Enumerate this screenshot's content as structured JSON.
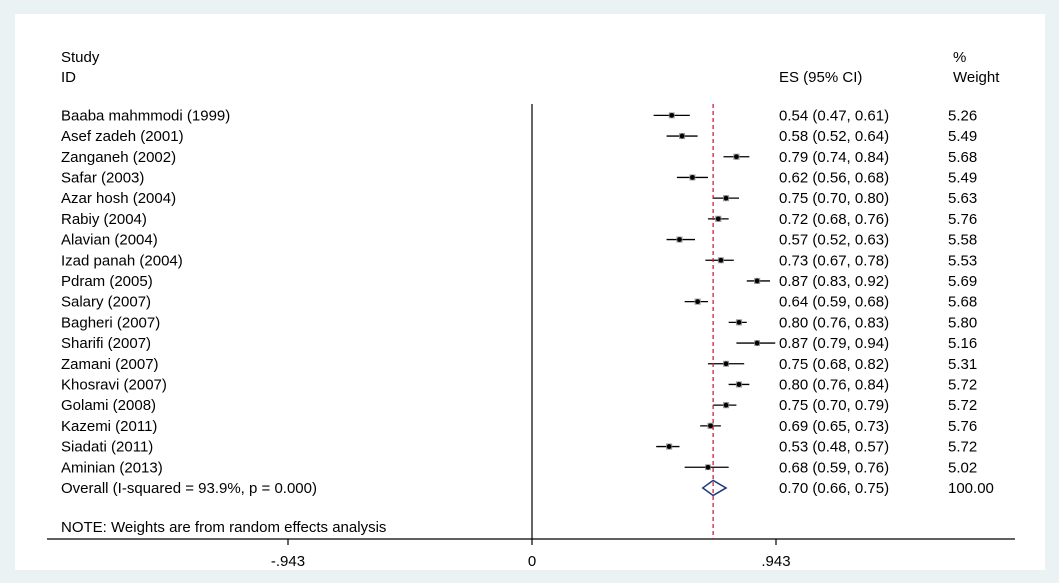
{
  "chart_data": {
    "type": "forest",
    "header": {
      "study_line1": "Study",
      "study_line2": "ID",
      "es_label": "ES (95% CI)",
      "weight_line1": "%",
      "weight_line2": "Weight"
    },
    "studies": [
      {
        "id": "Baaba mahmmodi (1999)",
        "es": 0.54,
        "lo": 0.47,
        "hi": 0.61,
        "ci_text": "0.54 (0.47, 0.61)",
        "weight": "5.26"
      },
      {
        "id": "Asef zadeh (2001)",
        "es": 0.58,
        "lo": 0.52,
        "hi": 0.64,
        "ci_text": "0.58 (0.52, 0.64)",
        "weight": "5.49"
      },
      {
        "id": "Zanganeh (2002)",
        "es": 0.79,
        "lo": 0.74,
        "hi": 0.84,
        "ci_text": "0.79 (0.74, 0.84)",
        "weight": "5.68"
      },
      {
        "id": "Safar (2003)",
        "es": 0.62,
        "lo": 0.56,
        "hi": 0.68,
        "ci_text": "0.62 (0.56, 0.68)",
        "weight": "5.49"
      },
      {
        "id": "Azar hosh (2004)",
        "es": 0.75,
        "lo": 0.7,
        "hi": 0.8,
        "ci_text": "0.75 (0.70, 0.80)",
        "weight": "5.63"
      },
      {
        "id": "Rabiy (2004)",
        "es": 0.72,
        "lo": 0.68,
        "hi": 0.76,
        "ci_text": "0.72 (0.68, 0.76)",
        "weight": "5.76"
      },
      {
        "id": "Alavian (2004)",
        "es": 0.57,
        "lo": 0.52,
        "hi": 0.63,
        "ci_text": "0.57 (0.52, 0.63)",
        "weight": "5.58"
      },
      {
        "id": "Izad panah (2004)",
        "es": 0.73,
        "lo": 0.67,
        "hi": 0.78,
        "ci_text": "0.73 (0.67, 0.78)",
        "weight": "5.53"
      },
      {
        "id": "Pdram (2005)",
        "es": 0.87,
        "lo": 0.83,
        "hi": 0.92,
        "ci_text": "0.87 (0.83, 0.92)",
        "weight": "5.69"
      },
      {
        "id": "Salary (2007)",
        "es": 0.64,
        "lo": 0.59,
        "hi": 0.68,
        "ci_text": "0.64 (0.59, 0.68)",
        "weight": "5.68"
      },
      {
        "id": "Bagheri (2007)",
        "es": 0.8,
        "lo": 0.76,
        "hi": 0.83,
        "ci_text": "0.80 (0.76, 0.83)",
        "weight": "5.80"
      },
      {
        "id": "Sharifi (2007)",
        "es": 0.87,
        "lo": 0.79,
        "hi": 0.94,
        "ci_text": "0.87 (0.79, 0.94)",
        "weight": "5.16"
      },
      {
        "id": "Zamani (2007)",
        "es": 0.75,
        "lo": 0.68,
        "hi": 0.82,
        "ci_text": "0.75 (0.68, 0.82)",
        "weight": "5.31"
      },
      {
        "id": "Khosravi (2007)",
        "es": 0.8,
        "lo": 0.76,
        "hi": 0.84,
        "ci_text": "0.80 (0.76, 0.84)",
        "weight": "5.72"
      },
      {
        "id": "Golami (2008)",
        "es": 0.75,
        "lo": 0.7,
        "hi": 0.79,
        "ci_text": "0.75 (0.70, 0.79)",
        "weight": "5.72"
      },
      {
        "id": "Kazemi (2011)",
        "es": 0.69,
        "lo": 0.65,
        "hi": 0.73,
        "ci_text": "0.69 (0.65, 0.73)",
        "weight": "5.76"
      },
      {
        "id": "Siadati (2011)",
        "es": 0.53,
        "lo": 0.48,
        "hi": 0.57,
        "ci_text": "0.53 (0.48, 0.57)",
        "weight": "5.72"
      },
      {
        "id": "Aminian (2013)",
        "es": 0.68,
        "lo": 0.59,
        "hi": 0.76,
        "ci_text": "0.68 (0.59, 0.76)",
        "weight": "5.02"
      }
    ],
    "overall": {
      "label": "Overall  (I-squared = 93.9%, p = 0.000)",
      "es": 0.7,
      "lo": 0.66,
      "hi": 0.75,
      "ci_text": "0.70 (0.66, 0.75)",
      "weight": "100.00"
    },
    "note": "NOTE: Weights are from random effects analysis",
    "x_ticks": [
      {
        "value": -0.943,
        "label": "-.943"
      },
      {
        "value": 0,
        "label": "0"
      },
      {
        "value": 0.943,
        "label": ".943"
      }
    ],
    "xlim": [
      -0.943,
      0.943
    ],
    "null_line": 0,
    "overall_line_style": "dashed",
    "colors": {
      "overall_line": "#c8102e",
      "diamond": "#1f3a7a",
      "background": "#eaf2f3",
      "plot_background": "#ffffff"
    }
  }
}
